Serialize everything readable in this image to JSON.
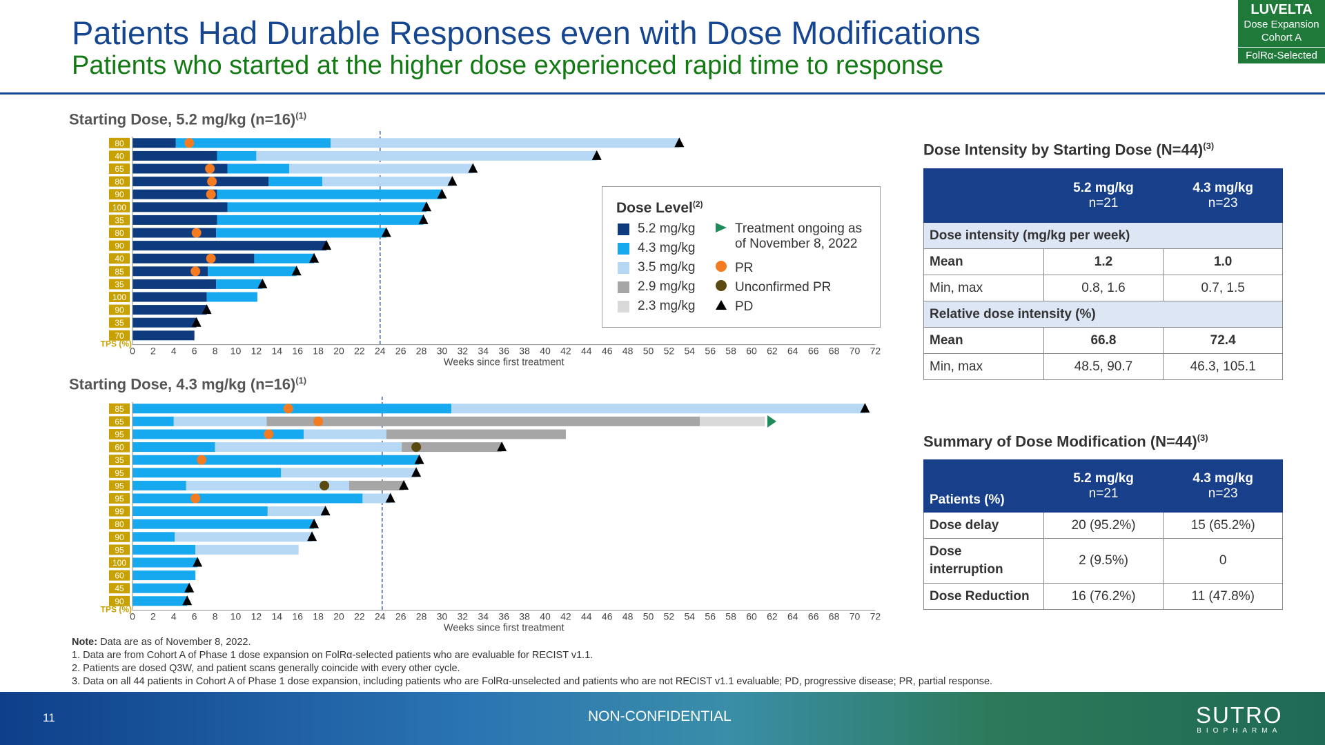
{
  "header": {
    "title": "Patients Had Durable Responses even with Dose Modifications",
    "subtitle": "Patients who started at the higher dose experienced rapid time to response",
    "badge": {
      "brand": "LUVELTA",
      "line1": "Dose Expansion",
      "line2": "Cohort A",
      "line3": "FolRα-Selected"
    }
  },
  "colors": {
    "d52": "#0d3b7e",
    "d43": "#17a9ef",
    "d35": "#b6d8f5",
    "d29": "#a6a6a6",
    "d23": "#d9d9d9",
    "pr": "#f47b20",
    "upr": "#5a4a10",
    "pd": "#000000",
    "ongoing": "#1f8a5a",
    "tps_bg": "#c8a000",
    "brand": "#15468f",
    "green": "#127a12"
  },
  "legend": {
    "title": "Dose Level",
    "title_sup": "(2)",
    "items": [
      "5.2 mg/kg",
      "4.3 mg/kg",
      "3.5 mg/kg",
      "2.9 mg/kg",
      "2.3 mg/kg"
    ],
    "ongoing": "Treatment ongoing as",
    "ongoing2": "of November 8, 2022",
    "pr": "PR",
    "upr": "Unconfirmed PR",
    "pd": "PD"
  },
  "chart_data": [
    {
      "type": "bar",
      "title": "Starting Dose, 5.2 mg/kg (n=16)",
      "title_sup": "(1)",
      "xlabel": "Weeks since first treatment",
      "ylabel": "TPS (%)",
      "xlim": [
        0,
        72
      ],
      "xticks": [
        0,
        2,
        4,
        6,
        8,
        10,
        12,
        14,
        16,
        18,
        20,
        22,
        24,
        26,
        28,
        30,
        32,
        34,
        36,
        38,
        40,
        42,
        44,
        46,
        48,
        50,
        52,
        54,
        56,
        58,
        60,
        62,
        64,
        66,
        68,
        70,
        72
      ],
      "ref_line_week": 24,
      "rows": [
        {
          "tps": "80",
          "segments": [
            [
              "d52",
              0,
              4.2
            ],
            [
              "d43",
              4.2,
              19.2
            ],
            [
              "d35",
              19.2,
              53
            ]
          ],
          "pr": 5.5,
          "pd": 53
        },
        {
          "tps": "40",
          "segments": [
            [
              "d52",
              0,
              8.2
            ],
            [
              "d43",
              8.2,
              12
            ],
            [
              "d35",
              12,
              45
            ]
          ],
          "pd": 45
        },
        {
          "tps": "65",
          "segments": [
            [
              "d52",
              0,
              9.2
            ],
            [
              "d43",
              9.2,
              15.2
            ],
            [
              "d35",
              15.2,
              33
            ]
          ],
          "pr": 7.5,
          "pd": 33
        },
        {
          "tps": "80",
          "segments": [
            [
              "d52",
              0,
              13.2
            ],
            [
              "d43",
              13.2,
              18.4
            ],
            [
              "d35",
              18.4,
              31
            ]
          ],
          "pr": 7.7,
          "pd": 31
        },
        {
          "tps": "90",
          "segments": [
            [
              "d52",
              0,
              8.2
            ],
            [
              "d43",
              8.2,
              30
            ]
          ],
          "pr": 7.6,
          "pd": 30
        },
        {
          "tps": "100",
          "segments": [
            [
              "d52",
              0,
              9.2
            ],
            [
              "d43",
              9.2,
              28.5
            ]
          ],
          "pd": 28.5
        },
        {
          "tps": "35",
          "segments": [
            [
              "d52",
              0,
              8.2
            ],
            [
              "d43",
              8.2,
              28.2
            ]
          ],
          "pd": 28.2
        },
        {
          "tps": "80",
          "segments": [
            [
              "d52",
              0,
              8.1
            ],
            [
              "d43",
              8.1,
              24.6
            ]
          ],
          "pr": 6.2,
          "pd": 24.6
        },
        {
          "tps": "90",
          "segments": [
            [
              "d52",
              0,
              18.8
            ]
          ],
          "pd": 18.8
        },
        {
          "tps": "40",
          "segments": [
            [
              "d52",
              0,
              11.8
            ],
            [
              "d43",
              11.8,
              17.6
            ]
          ],
          "pr": 7.6,
          "pd": 17.6
        },
        {
          "tps": "85",
          "segments": [
            [
              "d52",
              0,
              7.3
            ],
            [
              "d43",
              7.3,
              15.9
            ]
          ],
          "pr": 6.1,
          "pd": 15.9
        },
        {
          "tps": "35",
          "segments": [
            [
              "d52",
              0,
              8.1
            ],
            [
              "d43",
              8.1,
              12.6
            ]
          ],
          "pd": 12.6
        },
        {
          "tps": "100",
          "segments": [
            [
              "d52",
              0,
              7.2
            ],
            [
              "d43",
              7.2,
              12.1
            ]
          ]
        },
        {
          "tps": "90",
          "segments": [
            [
              "d52",
              0,
              7.2
            ]
          ],
          "pd": 7.2
        },
        {
          "tps": "35",
          "segments": [
            [
              "d52",
              0,
              6.2
            ]
          ],
          "pd": 6.2
        },
        {
          "tps": "70",
          "segments": [
            [
              "d52",
              0,
              6
            ]
          ]
        }
      ]
    },
    {
      "type": "bar",
      "title": "Starting Dose, 4.3 mg/kg (n=16)",
      "title_sup": "(1)",
      "xlabel": "Weeks since first treatment",
      "ylabel": "TPS (%)",
      "xlim": [
        0,
        72
      ],
      "xticks": [
        0,
        2,
        4,
        6,
        8,
        10,
        12,
        14,
        16,
        18,
        20,
        22,
        24,
        26,
        28,
        30,
        32,
        34,
        36,
        38,
        40,
        42,
        44,
        46,
        48,
        50,
        52,
        54,
        56,
        58,
        60,
        62,
        64,
        66,
        68,
        70,
        72
      ],
      "ref_line_week": 24.2,
      "rows": [
        {
          "tps": "85",
          "segments": [
            [
              "d43",
              0,
              30.9
            ],
            [
              "d35",
              30.9,
              71
            ]
          ],
          "pr": 15.1,
          "pd": 71
        },
        {
          "tps": "65",
          "segments": [
            [
              "d43",
              0,
              4
            ],
            [
              "d35",
              4,
              13
            ],
            [
              "d29",
              13,
              55
            ],
            [
              "d23",
              55,
              61.3
            ]
          ],
          "pr": 18,
          "ongoing": 61.8
        },
        {
          "tps": "95",
          "segments": [
            [
              "d43",
              0,
              16.6
            ],
            [
              "d35",
              16.6,
              24.6
            ],
            [
              "d29",
              24.6,
              42
            ]
          ],
          "pr": 13.2
        },
        {
          "tps": "60",
          "segments": [
            [
              "d43",
              0,
              8
            ],
            [
              "d35",
              8,
              26.1
            ],
            [
              "d29",
              26.1,
              35.8
            ]
          ],
          "upr": 27.5,
          "pd": 35.8
        },
        {
          "tps": "35",
          "segments": [
            [
              "d43",
              0,
              27.8
            ]
          ],
          "pr": 6.7,
          "pd": 27.8
        },
        {
          "tps": "95",
          "segments": [
            [
              "d43",
              0,
              14.4
            ],
            [
              "d35",
              14.4,
              27.5
            ]
          ],
          "pd": 27.5
        },
        {
          "tps": "95",
          "segments": [
            [
              "d43",
              0,
              5.2
            ],
            [
              "d35",
              5.2,
              21
            ],
            [
              "d29",
              21,
              26.3
            ]
          ],
          "upr": 18.6,
          "pd": 26.3
        },
        {
          "tps": "95",
          "segments": [
            [
              "d43",
              0,
              22.3
            ],
            [
              "d35",
              22.3,
              25
            ]
          ],
          "pr": 6.1,
          "pd": 25
        },
        {
          "tps": "99",
          "segments": [
            [
              "d43",
              0,
              13.1
            ],
            [
              "d35",
              13.1,
              18.7
            ]
          ],
          "pd": 18.7
        },
        {
          "tps": "80",
          "segments": [
            [
              "d43",
              0,
              17.6
            ]
          ],
          "pd": 17.6
        },
        {
          "tps": "90",
          "segments": [
            [
              "d43",
              0,
              4.1
            ],
            [
              "d35",
              4.1,
              17.4
            ]
          ],
          "pd": 17.4
        },
        {
          "tps": "95",
          "segments": [
            [
              "d43",
              0,
              6.1
            ],
            [
              "d35",
              6.1,
              16.1
            ]
          ]
        },
        {
          "tps": "100",
          "segments": [
            [
              "d43",
              0,
              6.3
            ]
          ],
          "pd": 6.3
        },
        {
          "tps": "60",
          "segments": [
            [
              "d43",
              0,
              6.1
            ]
          ]
        },
        {
          "tps": "45",
          "segments": [
            [
              "d43",
              0,
              5.5
            ]
          ],
          "pd": 5.5
        },
        {
          "tps": "90",
          "segments": [
            [
              "d43",
              0,
              5.3
            ]
          ],
          "pd": 5.3
        }
      ]
    }
  ],
  "intensity_table": {
    "title": "Dose Intensity by Starting Dose (N=44)",
    "title_sup": "(3)",
    "col1": "5.2 mg/kg",
    "col1n": "n=21",
    "col2": "4.3 mg/kg",
    "col2n": "n=23",
    "sec1": "Dose intensity (mg/kg per week)",
    "r1": [
      "Mean",
      "1.2",
      "1.0"
    ],
    "r2": [
      "Min, max",
      "0.8, 1.6",
      "0.7, 1.5"
    ],
    "sec2": "Relative dose intensity (%)",
    "r3": [
      "Mean",
      "66.8",
      "72.4"
    ],
    "r4": [
      "Min, max",
      "48.5, 90.7",
      "46.3, 105.1"
    ]
  },
  "mod_table": {
    "title": "Summary of Dose Modification (N=44)",
    "title_sup": "(3)",
    "head": "Patients (%)",
    "col1": "5.2 mg/kg",
    "col1n": "n=21",
    "col2": "4.3 mg/kg",
    "col2n": "n=23",
    "r1": [
      "Dose delay",
      "20 (95.2%)",
      "15 (65.2%)"
    ],
    "r2": [
      "Dose interruption",
      "2 (9.5%)",
      "0"
    ],
    "r3": [
      "Dose Reduction",
      "16 (76.2%)",
      "11 (47.8%)"
    ]
  },
  "notes": {
    "note_label": "Note:",
    "note_text": " Data are as of November 8, 2022.",
    "n1": "1. Data are from Cohort A of Phase 1 dose expansion on FolRα-selected patients who are evaluable for RECIST v1.1.",
    "n2": "2. Patients are dosed Q3W, and patient scans generally coincide with every other cycle.",
    "n3": "3. Data on all 44 patients in Cohort A of Phase 1 dose expansion, including patients who are FolRα-unselected and patients who are not RECIST v1.1 evaluable; PD, progressive disease; PR, partial response."
  },
  "footer": {
    "page": "11",
    "confidential": "NON-CONFIDENTIAL",
    "logo": "SUTRO",
    "logo_sub": "BIOPHARMA"
  }
}
